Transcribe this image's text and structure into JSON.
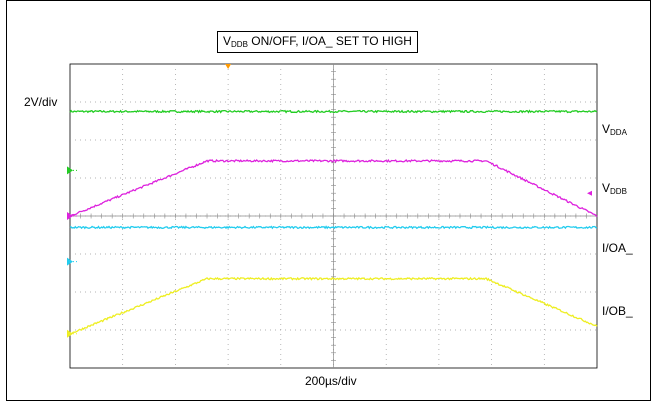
{
  "chart_data": {
    "type": "line",
    "title": {
      "v": "V",
      "sub": "DDB",
      "rest": " ON/OFF, I/OA_ SET TO HIGH"
    },
    "vertical_scale": "2V/div",
    "horizontal_scale": "200µs/div",
    "grid": {
      "on": true,
      "x_divisions": 10,
      "y_divisions": 8
    },
    "x_unit": "div",
    "y_unit": "div",
    "series": [
      {
        "name": {
          "v": "V",
          "sub": "DDA"
        },
        "color": "#22cc22",
        "x": [
          0,
          10
        ],
        "y": [
          6.75,
          6.75
        ]
      },
      {
        "name": {
          "v": "V",
          "sub": "DDB"
        },
        "color": "#dd22dd",
        "x": [
          0,
          2.6,
          7.9,
          10
        ],
        "y": [
          4.0,
          5.45,
          5.45,
          4.0
        ]
      },
      {
        "name": {
          "v": "I/OA_",
          "sub": ""
        },
        "color": "#22ccee",
        "x": [
          0,
          10
        ],
        "y": [
          3.7,
          3.7
        ]
      },
      {
        "name": {
          "v": "I/OB_",
          "sub": ""
        },
        "color": "#eeee22",
        "x": [
          0,
          2.6,
          7.9,
          10
        ],
        "y": [
          0.9,
          2.35,
          2.35,
          1.1
        ]
      }
    ],
    "ground_markers": [
      {
        "color": "#22cc22",
        "y": 5.2
      },
      {
        "color": "#dd22dd",
        "y": 4.0
      },
      {
        "color": "#22ccee",
        "y": 2.8
      },
      {
        "color": "#eeee22",
        "y": 0.9
      }
    ],
    "trigger_marker": {
      "color": "#ff9900",
      "x": 3.0
    },
    "level_marker": {
      "color": "#dd22dd",
      "y": 4.6
    }
  }
}
